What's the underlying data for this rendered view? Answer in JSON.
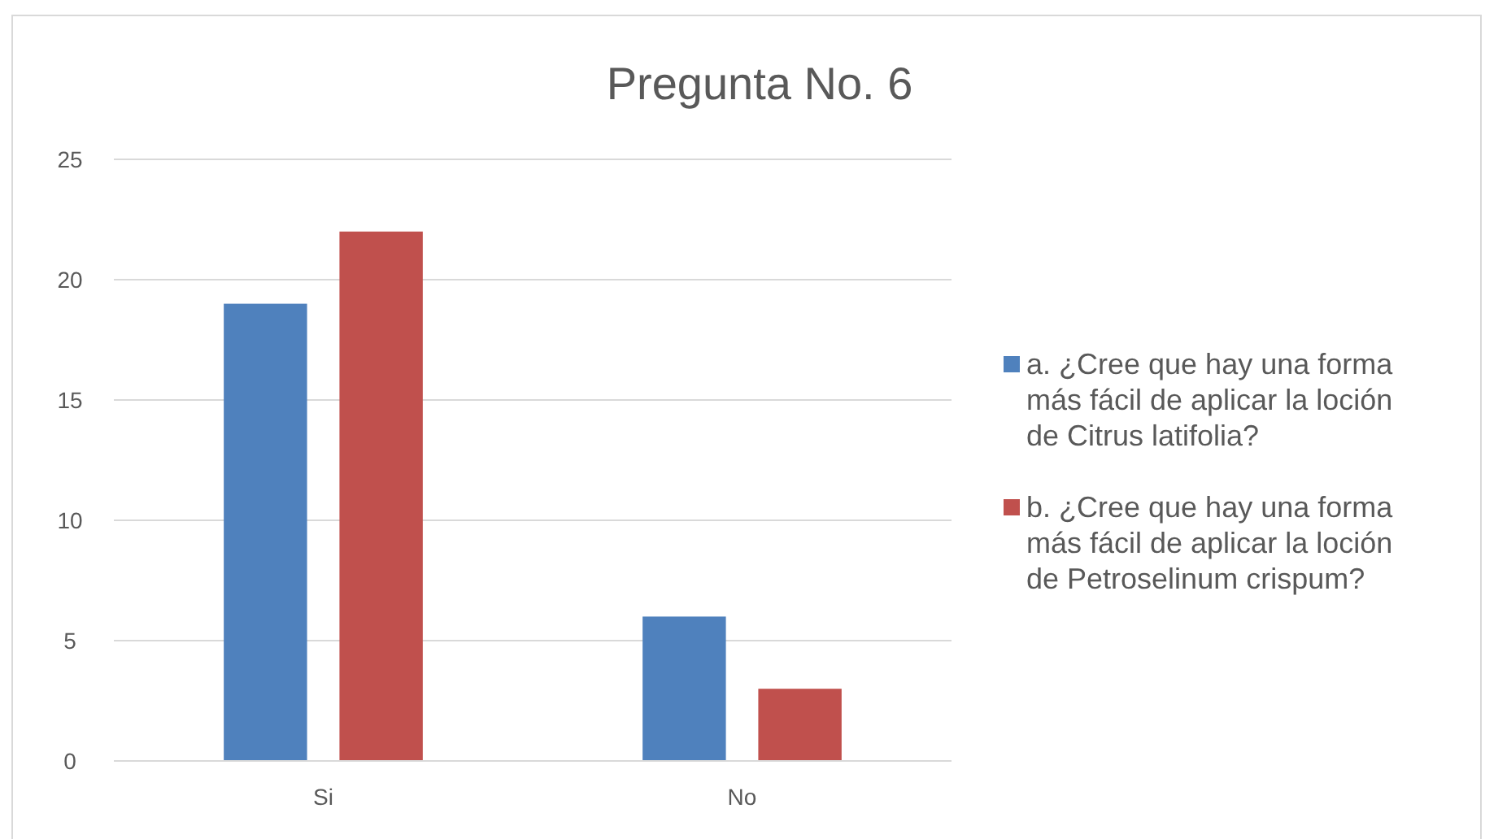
{
  "chart_data": {
    "type": "bar",
    "title": "Pregunta No. 6",
    "categories": [
      "Si",
      "No"
    ],
    "series": [
      {
        "name": "a. ¿Cree que hay una forma más fácil de aplicar la loción de Citrus latifolia?",
        "color": "#4f81bd",
        "values": [
          19,
          6
        ]
      },
      {
        "name": "b. ¿Cree que hay una forma más fácil de aplicar la loción de Petroselinum crispum?",
        "color": "#c0504d",
        "values": [
          22,
          3
        ]
      }
    ],
    "ylim": [
      0,
      25
    ],
    "yticks": [
      0,
      5,
      10,
      15,
      20,
      25
    ],
    "grid": "y",
    "legend": "right"
  }
}
